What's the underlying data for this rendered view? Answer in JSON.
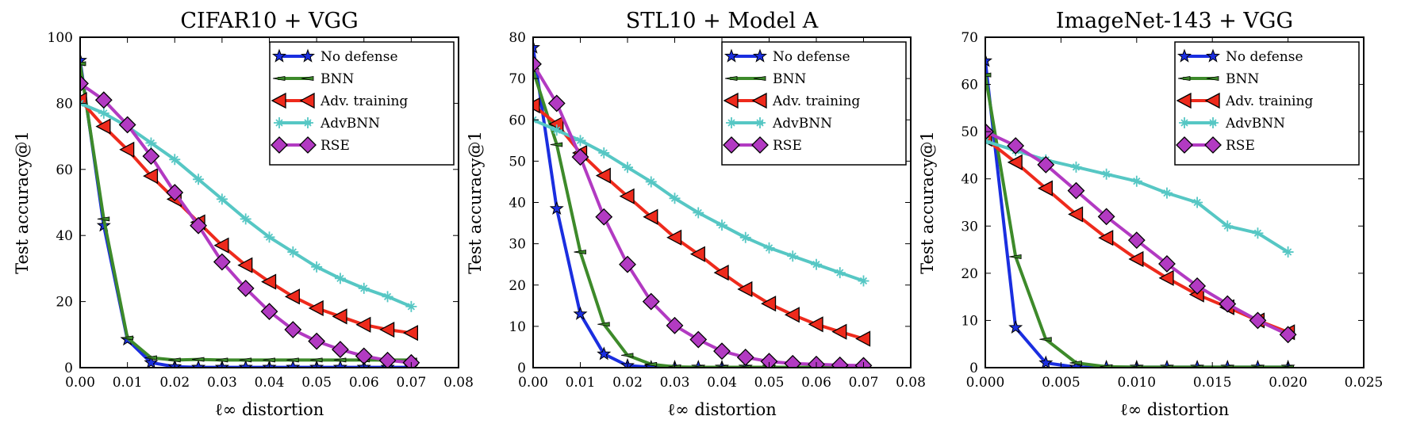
{
  "legend_entries": [
    "No defense",
    "BNN",
    "Adv. training",
    "AdvBNN",
    "RSE"
  ],
  "series_style": {
    "No defense": {
      "color": "#1a2ee0",
      "marker": "star"
    },
    "BNN": {
      "color": "#3d8a2a",
      "marker": "tri-left-thin"
    },
    "Adv. training": {
      "color": "#ee2a1c",
      "marker": "tri-left"
    },
    "AdvBNN": {
      "color": "#56c7c4",
      "marker": "plus-star"
    },
    "RSE": {
      "color": "#b23ac2",
      "marker": "diamond"
    }
  },
  "chart_data": [
    {
      "type": "line",
      "title": "CIFAR10 + VGG",
      "xlabel": "ℓ∞ distortion",
      "ylabel": "Test accuracy@1",
      "xlim": [
        0,
        0.08
      ],
      "ylim": [
        0,
        100
      ],
      "xticks": [
        "0.00",
        "0.01",
        "0.02",
        "0.03",
        "0.04",
        "0.05",
        "0.06",
        "0.07",
        "0.08"
      ],
      "yticks": [
        "0",
        "20",
        "40",
        "60",
        "80",
        "100"
      ],
      "legend_position": "top-right",
      "series": [
        {
          "name": "No defense",
          "x": [
            0,
            0.005,
            0.01,
            0.015,
            0.02,
            0.025,
            0.03,
            0.035,
            0.04,
            0.045,
            0.05,
            0.055,
            0.06,
            0.065,
            0.07
          ],
          "y": [
            93,
            43,
            8.5,
            1.5,
            0.3,
            0.1,
            0.1,
            0.1,
            0.1,
            0.1,
            0.1,
            0.1,
            0.1,
            0.1,
            0.1
          ]
        },
        {
          "name": "BNN",
          "x": [
            0,
            0.005,
            0.01,
            0.015,
            0.02,
            0.025,
            0.03,
            0.035,
            0.04,
            0.045,
            0.05,
            0.055,
            0.06,
            0.065,
            0.07
          ],
          "y": [
            92,
            45,
            9,
            3,
            2.3,
            2.5,
            2.3,
            2.3,
            2.3,
            2.3,
            2.3,
            2.3,
            2.3,
            2.3,
            2.3
          ]
        },
        {
          "name": "Adv. training",
          "x": [
            0,
            0.005,
            0.01,
            0.015,
            0.02,
            0.025,
            0.03,
            0.035,
            0.04,
            0.045,
            0.05,
            0.055,
            0.06,
            0.065,
            0.07
          ],
          "y": [
            81,
            73,
            66,
            58,
            51,
            44,
            37,
            31,
            26,
            21.5,
            18,
            15.5,
            13,
            11.5,
            10.5
          ]
        },
        {
          "name": "AdvBNN",
          "x": [
            0,
            0.005,
            0.01,
            0.015,
            0.02,
            0.025,
            0.03,
            0.035,
            0.04,
            0.045,
            0.05,
            0.055,
            0.06,
            0.065,
            0.07
          ],
          "y": [
            80,
            77,
            73,
            68,
            63,
            57,
            51,
            45,
            39.5,
            35,
            30.5,
            27,
            24,
            21.5,
            18.5
          ]
        },
        {
          "name": "RSE",
          "x": [
            0,
            0.005,
            0.01,
            0.015,
            0.02,
            0.025,
            0.03,
            0.035,
            0.04,
            0.045,
            0.05,
            0.055,
            0.06,
            0.065,
            0.07
          ],
          "y": [
            86,
            81,
            73.5,
            64,
            53,
            43,
            32,
            24,
            17,
            11.5,
            8,
            5.5,
            3.5,
            2.2,
            1.5
          ]
        }
      ]
    },
    {
      "type": "line",
      "title": "STL10 + Model A",
      "xlabel": "ℓ∞ distortion",
      "ylabel": "Test accuracy@1",
      "xlim": [
        0,
        0.08
      ],
      "ylim": [
        0,
        80
      ],
      "xticks": [
        "0.00",
        "0.01",
        "0.02",
        "0.03",
        "0.04",
        "0.05",
        "0.06",
        "0.07",
        "0.08"
      ],
      "yticks": [
        "0",
        "10",
        "20",
        "30",
        "40",
        "50",
        "60",
        "70",
        "80"
      ],
      "legend_position": "top-right",
      "series": [
        {
          "name": "No defense",
          "x": [
            0,
            0.005,
            0.01,
            0.015,
            0.02,
            0.025,
            0.03,
            0.035,
            0.04,
            0.045,
            0.05,
            0.055,
            0.06,
            0.065,
            0.07
          ],
          "y": [
            77.5,
            38.5,
            13,
            3.3,
            0.5,
            0.1,
            0.1,
            0.1,
            0.1,
            0.1,
            0.1,
            0.1,
            0.1,
            0.1,
            0.1
          ]
        },
        {
          "name": "BNN",
          "x": [
            0,
            0.005,
            0.01,
            0.015,
            0.02,
            0.025,
            0.03,
            0.035,
            0.04,
            0.045,
            0.05,
            0.055,
            0.06,
            0.065,
            0.07
          ],
          "y": [
            72,
            54,
            28,
            10.5,
            3,
            0.8,
            0.2,
            0.1,
            0.1,
            0.1,
            0.1,
            0.1,
            0.1,
            0.1,
            0.1
          ]
        },
        {
          "name": "Adv. training",
          "x": [
            0,
            0.005,
            0.01,
            0.015,
            0.02,
            0.025,
            0.03,
            0.035,
            0.04,
            0.045,
            0.05,
            0.055,
            0.06,
            0.065,
            0.07
          ],
          "y": [
            63.5,
            59,
            52,
            46.5,
            41.5,
            36.5,
            31.5,
            27.5,
            23,
            19,
            15.5,
            12.8,
            10.5,
            8.7,
            7
          ]
        },
        {
          "name": "AdvBNN",
          "x": [
            0,
            0.005,
            0.01,
            0.015,
            0.02,
            0.025,
            0.03,
            0.035,
            0.04,
            0.045,
            0.05,
            0.055,
            0.06,
            0.065,
            0.07
          ],
          "y": [
            60,
            57.5,
            55,
            52,
            48.5,
            45,
            41,
            37.5,
            34.5,
            31.5,
            29,
            27,
            25,
            23,
            21
          ]
        },
        {
          "name": "RSE",
          "x": [
            0,
            0.005,
            0.01,
            0.015,
            0.02,
            0.025,
            0.03,
            0.035,
            0.04,
            0.045,
            0.05,
            0.055,
            0.06,
            0.065,
            0.07
          ],
          "y": [
            73.5,
            64,
            51,
            36.5,
            25,
            16,
            10.2,
            6.8,
            4,
            2.5,
            1.5,
            1,
            0.8,
            0.6,
            0.5
          ]
        }
      ]
    },
    {
      "type": "line",
      "title": "ImageNet-143 + VGG",
      "xlabel": "ℓ∞ distortion",
      "ylabel": "Test accuracy@1",
      "xlim": [
        0,
        0.025
      ],
      "ylim": [
        0,
        70
      ],
      "xticks": [
        "0.000",
        "0.005",
        "0.010",
        "0.015",
        "0.020",
        "0.025"
      ],
      "yticks": [
        "0",
        "10",
        "20",
        "30",
        "40",
        "50",
        "60",
        "70"
      ],
      "legend_position": "top-right",
      "series": [
        {
          "name": "No defense",
          "x": [
            0,
            0.002,
            0.004,
            0.006,
            0.008,
            0.01,
            0.012,
            0.014,
            0.016,
            0.018,
            0.02
          ],
          "y": [
            65,
            8.5,
            1,
            0.1,
            0.1,
            0.1,
            0.1,
            0.1,
            0.1,
            0.1,
            0.1
          ]
        },
        {
          "name": "BNN",
          "x": [
            0,
            0.002,
            0.004,
            0.006,
            0.008,
            0.01,
            0.012,
            0.014,
            0.016,
            0.018,
            0.02
          ],
          "y": [
            62,
            23.5,
            6,
            1,
            0.2,
            0.1,
            0.1,
            0.1,
            0.1,
            0.1,
            0.1
          ]
        },
        {
          "name": "Adv. training",
          "x": [
            0,
            0.002,
            0.004,
            0.006,
            0.008,
            0.01,
            0.012,
            0.014,
            0.016,
            0.018,
            0.02
          ],
          "y": [
            48.5,
            43.5,
            38,
            32.5,
            27.5,
            23,
            19,
            15.5,
            12.8,
            10,
            7.5
          ]
        },
        {
          "name": "AdvBNN",
          "x": [
            0,
            0.002,
            0.004,
            0.006,
            0.008,
            0.01,
            0.012,
            0.014,
            0.016,
            0.018,
            0.02
          ],
          "y": [
            48,
            46,
            44,
            42.5,
            41,
            39.5,
            37,
            35,
            30,
            28.5,
            24.5
          ]
        },
        {
          "name": "RSE",
          "x": [
            0,
            0.002,
            0.004,
            0.006,
            0.008,
            0.01,
            0.012,
            0.014,
            0.016,
            0.018,
            0.02
          ],
          "y": [
            50,
            47,
            43,
            37.5,
            32,
            27,
            22,
            17.3,
            13.5,
            10,
            7
          ]
        }
      ]
    }
  ]
}
